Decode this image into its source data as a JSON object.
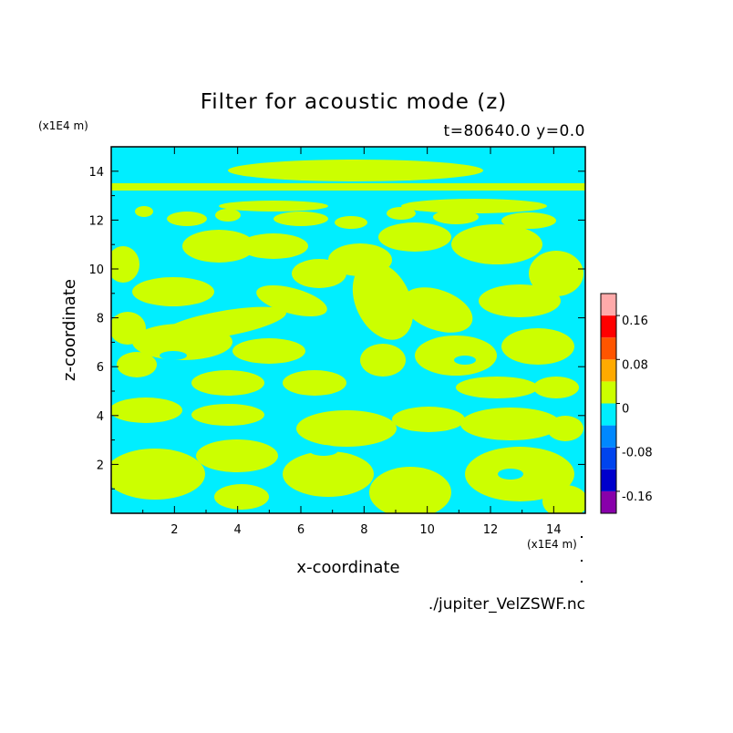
{
  "chart_data": {
    "type": "heatmap",
    "title": "Filter for acoustic mode (z)",
    "subtitle": "t=80640.0 y=0.0",
    "xlabel": "x-coordinate",
    "ylabel": "z-coordinate",
    "x_unit": "(x1E4 m)",
    "y_unit": "(x1E4 m)",
    "xlim": [
      0,
      15
    ],
    "ylim": [
      0,
      15
    ],
    "x_ticks": [
      "2",
      "4",
      "6",
      "8",
      "10",
      "12",
      "14"
    ],
    "y_ticks": [
      "2",
      "4",
      "6",
      "8",
      "10",
      "12",
      "14"
    ],
    "x_tick_values": [
      2,
      4,
      6,
      8,
      10,
      12,
      14
    ],
    "y_tick_values": [
      2,
      4,
      6,
      8,
      10,
      12,
      14
    ],
    "colorbar": {
      "labels": [
        "0.16",
        "0.08",
        "0",
        "-0.08",
        "-0.16"
      ],
      "label_values": [
        0.16,
        0.08,
        0,
        -0.08,
        -0.16
      ],
      "levels": [
        -0.2,
        -0.16,
        -0.12,
        -0.08,
        -0.04,
        0,
        0.04,
        0.08,
        0.12,
        0.16,
        0.2
      ],
      "colors": [
        "#8800aa",
        "#0000cc",
        "#0044ee",
        "#0088ff",
        "#00eeff",
        "#ccff00",
        "#ffaa00",
        "#ff5500",
        "#ff0000",
        "#ffaaaa"
      ]
    },
    "dominant_colors": {
      "negative_small": "#00eeff",
      "positive_small": "#ccff00"
    },
    "footer": "./jupiter_VelZSWF.nc"
  }
}
